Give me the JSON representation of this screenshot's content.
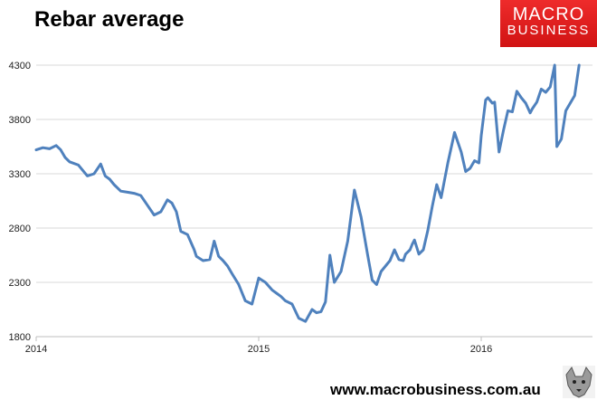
{
  "title": "Rebar average",
  "logo": {
    "line1": "MACRO",
    "line2": "BUSINESS",
    "bg": "#e31d1d"
  },
  "footer": "www.macrobusiness.com.au",
  "mascot_icon": "wolf-icon",
  "chart_data": {
    "type": "line",
    "title": "Rebar average",
    "xlabel": "",
    "ylabel": "",
    "xlim": [
      2014.0,
      2016.5
    ],
    "ylim": [
      1800,
      4300
    ],
    "yticks": [
      1800,
      2300,
      2800,
      3300,
      3800,
      4300
    ],
    "xticks": [
      2014,
      2015,
      2016
    ],
    "grid": "horizontal",
    "line_color": "#4f81bd",
    "series": [
      {
        "x": [
          2014.0,
          2014.03,
          2014.06,
          2014.09,
          2014.11,
          2014.13,
          2014.15,
          2014.19,
          2014.23,
          2014.26,
          2014.29,
          2014.31,
          2014.33,
          2014.35,
          2014.38,
          2014.41,
          2014.44,
          2014.47,
          2014.5,
          2014.53,
          2014.56,
          2014.59,
          2014.61,
          2014.63,
          2014.65,
          2014.68,
          2014.71,
          2014.72,
          2014.75,
          2014.78,
          2014.8,
          2014.82,
          2014.84,
          2014.86,
          2014.88,
          2014.91,
          2014.94,
          2014.97,
          2015.0,
          2015.03,
          2015.06,
          2015.08,
          2015.1,
          2015.12,
          2015.15,
          2015.18,
          2015.21,
          2015.24,
          2015.26,
          2015.28,
          2015.3,
          2015.32,
          2015.34,
          2015.37,
          2015.4,
          2015.43,
          2015.46,
          2015.49,
          2015.51,
          2015.53,
          2015.55,
          2015.57,
          2015.59,
          2015.61,
          2015.63,
          2015.65,
          2015.66,
          2015.68,
          2015.69,
          2015.7,
          2015.72,
          2015.74,
          2015.76,
          2015.78,
          2015.8,
          2015.82,
          2015.85,
          2015.88,
          2015.91,
          2015.93,
          2015.95,
          2015.97,
          2015.99,
          2016.0,
          2016.02,
          2016.03,
          2016.05,
          2016.06,
          2016.08,
          2016.1,
          2016.12,
          2016.14,
          2016.16,
          2016.18,
          2016.2,
          2016.22,
          2016.23,
          2016.25,
          2016.27,
          2016.29,
          2016.31,
          2016.33,
          2016.34,
          2016.36,
          2016.38,
          2016.4,
          2016.42,
          2016.44
        ],
        "values": [
          3520,
          3540,
          3530,
          3560,
          3520,
          3450,
          3410,
          3380,
          3280,
          3300,
          3390,
          3280,
          3250,
          3200,
          3140,
          3130,
          3120,
          3100,
          3010,
          2920,
          2950,
          3060,
          3030,
          2950,
          2770,
          2740,
          2600,
          2540,
          2500,
          2510,
          2680,
          2540,
          2500,
          2450,
          2380,
          2280,
          2130,
          2100,
          2340,
          2300,
          2230,
          2200,
          2170,
          2130,
          2100,
          1970,
          1940,
          2050,
          2020,
          2030,
          2120,
          2550,
          2300,
          2400,
          2680,
          3150,
          2900,
          2550,
          2320,
          2280,
          2400,
          2450,
          2500,
          2600,
          2510,
          2500,
          2560,
          2600,
          2650,
          2690,
          2560,
          2600,
          2780,
          3000,
          3200,
          3080,
          3400,
          3680,
          3500,
          3320,
          3350,
          3420,
          3400,
          3650,
          3980,
          4000,
          3950,
          3960,
          3500,
          3700,
          3880,
          3870,
          4060,
          4000,
          3950,
          3860,
          3900,
          3960,
          4080,
          4050,
          4100,
          4300,
          3550,
          3620,
          3880,
          3950,
          4020,
          4300
        ]
      }
    ]
  }
}
